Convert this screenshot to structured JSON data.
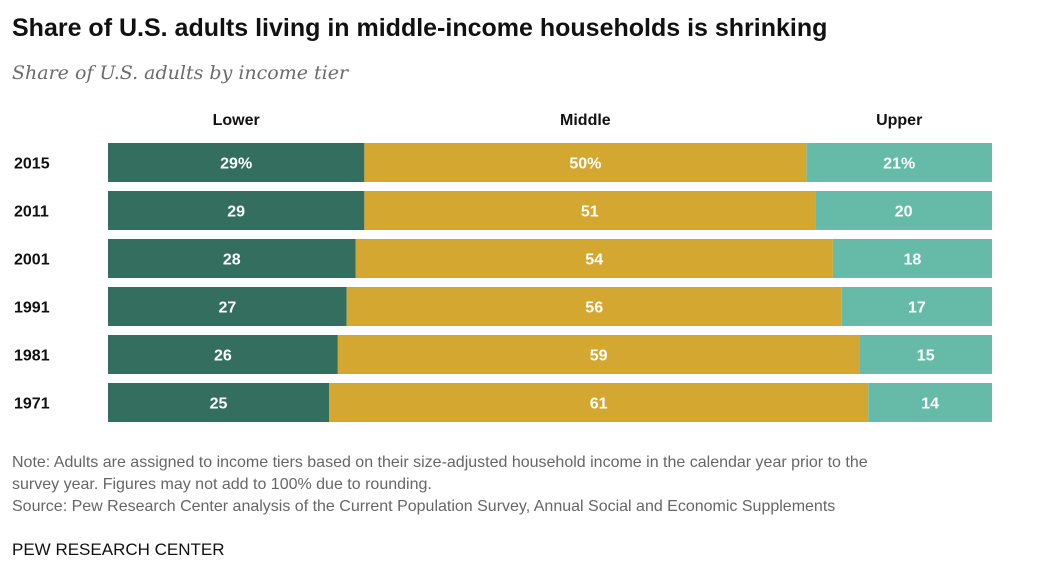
{
  "header": {
    "title": "Share of U.S. adults living in middle-income households is shrinking",
    "subtitle": "Share of U.S. adults by income tier"
  },
  "chart_data": {
    "type": "bar",
    "orientation": "horizontal",
    "stacked": true,
    "categories": [
      "2015",
      "2011",
      "2001",
      "1991",
      "1981",
      "1971"
    ],
    "series": [
      {
        "name": "Lower",
        "values": [
          29,
          29,
          28,
          27,
          26,
          25
        ],
        "color": "#336e5e"
      },
      {
        "name": "Middle",
        "values": [
          50,
          51,
          54,
          56,
          59,
          61
        ],
        "color": "#d4a731"
      },
      {
        "name": "Upper",
        "values": [
          21,
          20,
          18,
          17,
          15,
          14
        ],
        "color": "#66baa8"
      }
    ],
    "value_labels": [
      [
        "29%",
        "50%",
        "21%"
      ],
      [
        "29",
        "51",
        "20"
      ],
      [
        "28",
        "54",
        "18"
      ],
      [
        "27",
        "56",
        "17"
      ],
      [
        "26",
        "59",
        "15"
      ],
      [
        "25",
        "61",
        "14"
      ]
    ],
    "xlim": [
      0,
      100
    ],
    "grid": false,
    "legend": "top"
  },
  "footer": {
    "note_line1": "Note: Adults are assigned to income tiers based on their size-adjusted household income in the calendar year prior to the",
    "note_line2": "survey year. Figures may not add to 100% due to rounding.",
    "source": "Source: Pew Research Center analysis of the Current Population Survey, Annual Social and Economic Supplements",
    "brand": "PEW RESEARCH CENTER"
  }
}
